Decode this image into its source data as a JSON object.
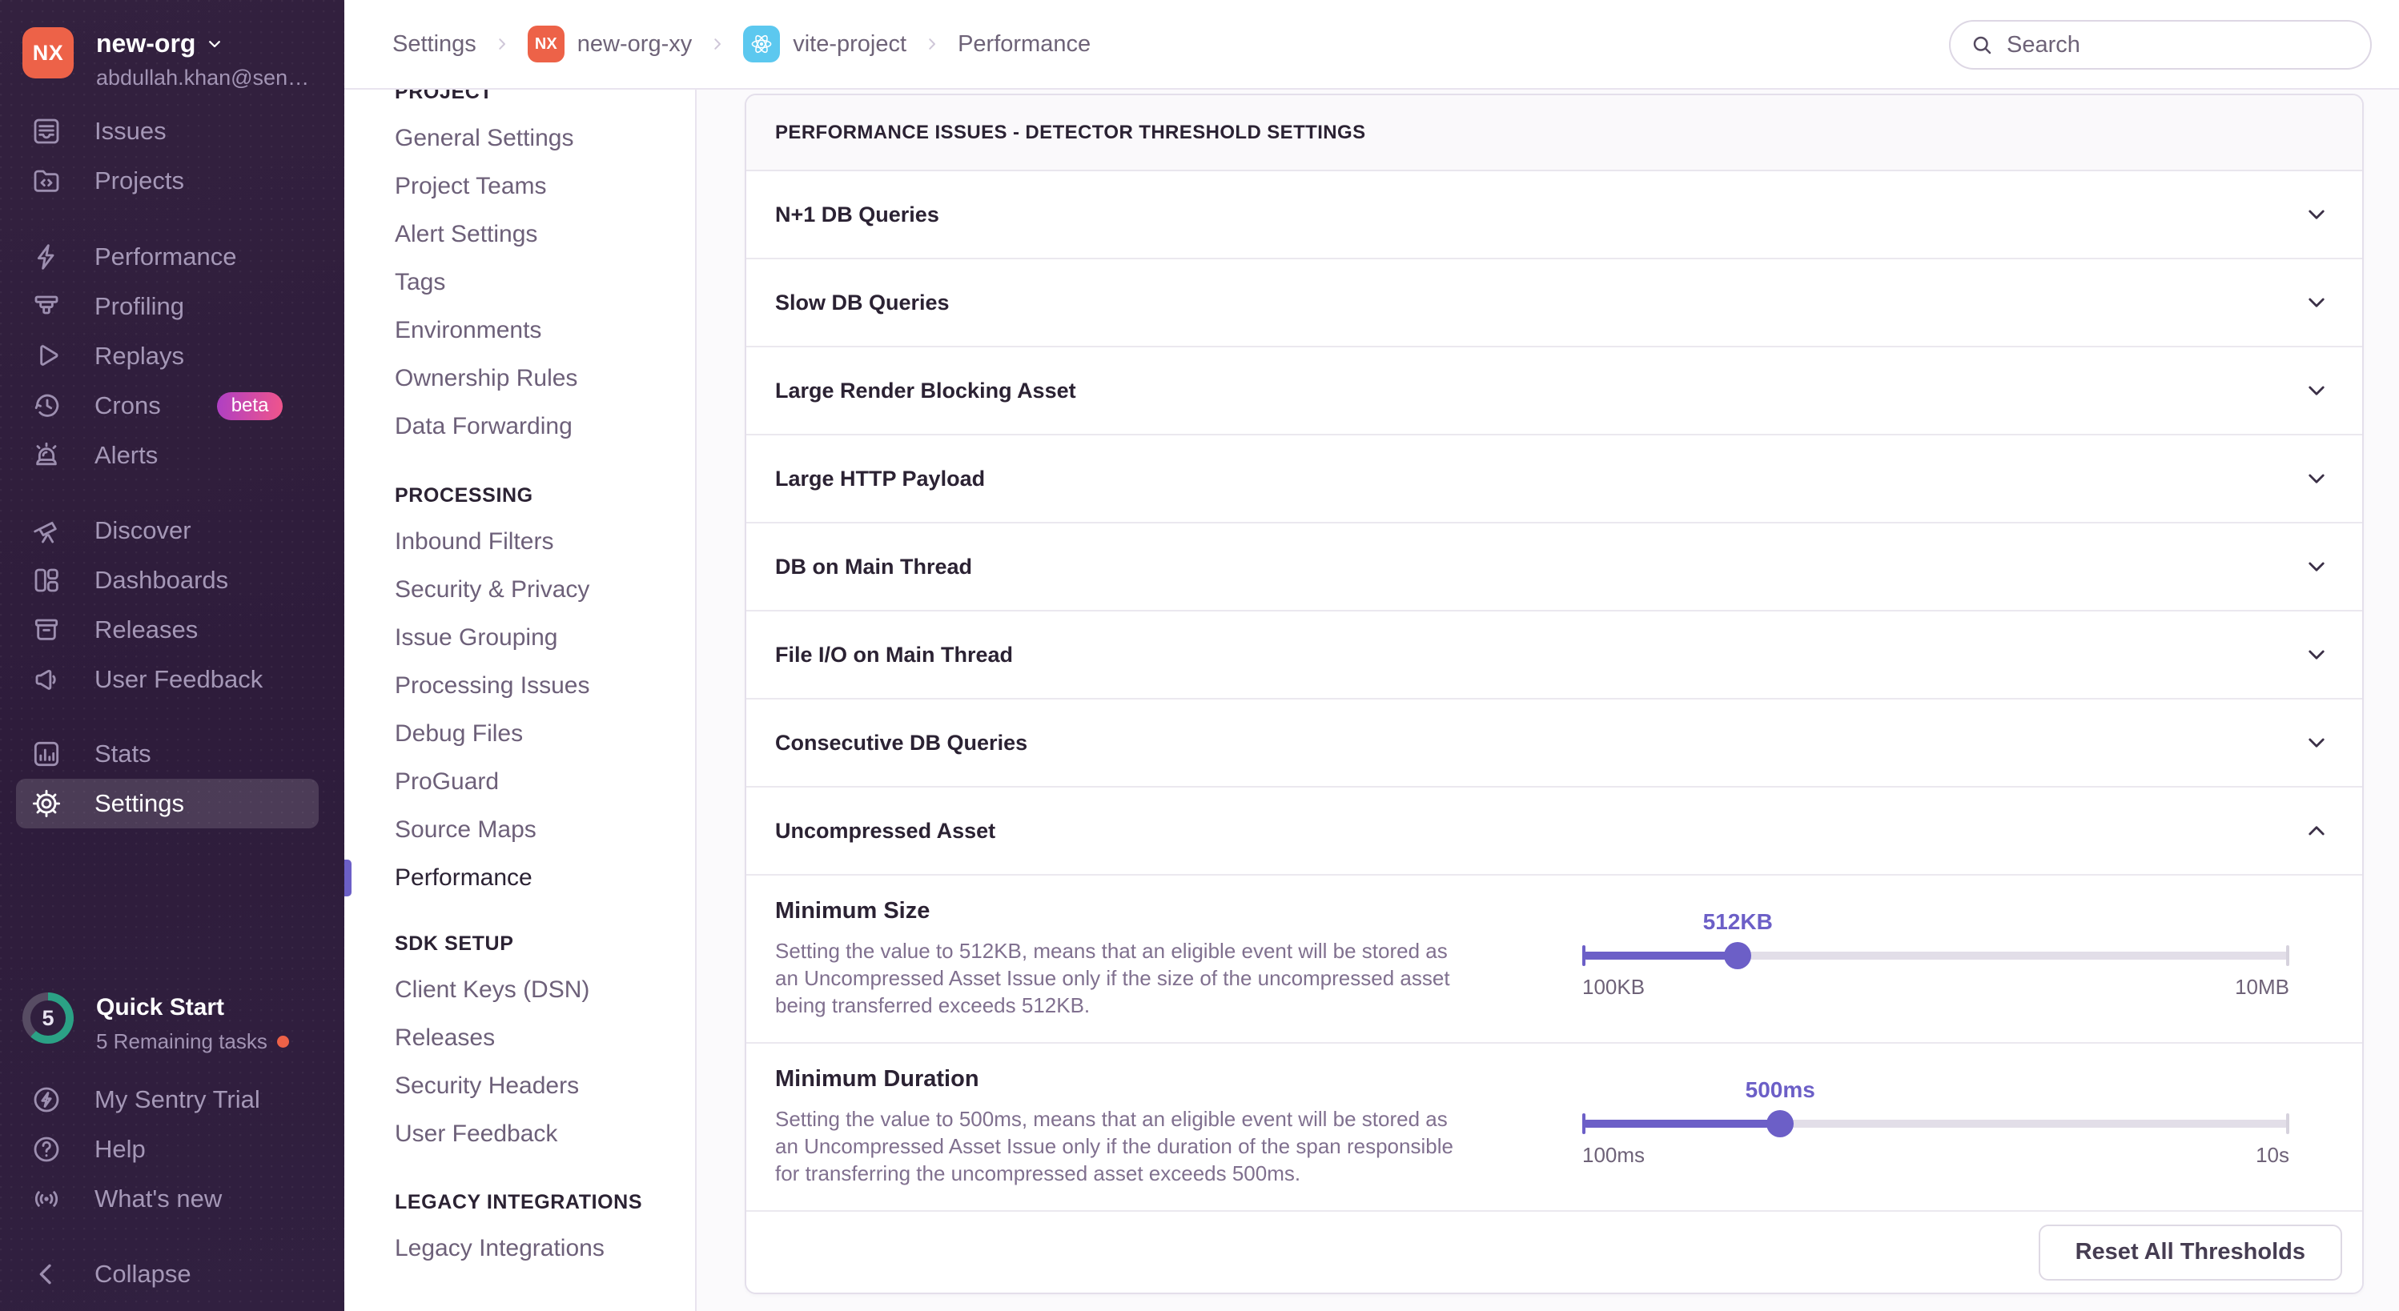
{
  "colors": {
    "accent": "#6c5fc7",
    "sidebar_bg": "#2f1d3c",
    "org_avatar_bg": "#ed6248",
    "react_badge_bg": "#5cc8ef",
    "beta_gradient_start": "#ae3fc4",
    "beta_gradient_end": "#f0558b",
    "quickstart_ring": "#2ba185",
    "notification_dot": "#ed6248"
  },
  "sidebar": {
    "org": {
      "avatar_initials": "NX",
      "name": "new-org",
      "email": "abdullah.khan@sen…"
    },
    "groups": [
      {
        "items": [
          {
            "label": "Issues",
            "icon": "issues"
          },
          {
            "label": "Projects",
            "icon": "projects"
          }
        ]
      },
      {
        "items": [
          {
            "label": "Performance",
            "icon": "performance"
          },
          {
            "label": "Profiling",
            "icon": "profiling"
          },
          {
            "label": "Replays",
            "icon": "replays"
          },
          {
            "label": "Crons",
            "icon": "crons",
            "badge": "beta"
          },
          {
            "label": "Alerts",
            "icon": "alerts"
          }
        ]
      },
      {
        "items": [
          {
            "label": "Discover",
            "icon": "discover"
          },
          {
            "label": "Dashboards",
            "icon": "dashboards"
          },
          {
            "label": "Releases",
            "icon": "releases"
          },
          {
            "label": "User Feedback",
            "icon": "user-feedback"
          }
        ]
      },
      {
        "items": [
          {
            "label": "Stats",
            "icon": "stats"
          },
          {
            "label": "Settings",
            "icon": "settings",
            "active": true
          }
        ]
      },
      {
        "items": [
          {
            "label": "My Sentry Trial",
            "icon": "trial"
          },
          {
            "label": "Help",
            "icon": "help"
          },
          {
            "label": "What's new",
            "icon": "whats-new"
          }
        ]
      }
    ],
    "quick_start": {
      "count": "5",
      "title": "Quick Start",
      "subtitle": "5 Remaining tasks"
    },
    "collapse": {
      "label": "Collapse",
      "icon": "collapse"
    }
  },
  "topbar": {
    "breadcrumbs": [
      {
        "label": "Settings"
      },
      {
        "label": "new-org-xy",
        "badge": "NX",
        "badge_type": "nx"
      },
      {
        "label": "vite-project",
        "badge_type": "react"
      },
      {
        "label": "Performance"
      }
    ],
    "search": {
      "placeholder": "Search"
    }
  },
  "settings_nav": {
    "sections": [
      {
        "title": "PROJECT",
        "items": [
          {
            "label": "General Settings"
          },
          {
            "label": "Project Teams"
          },
          {
            "label": "Alert Settings"
          },
          {
            "label": "Tags"
          },
          {
            "label": "Environments"
          },
          {
            "label": "Ownership Rules"
          },
          {
            "label": "Data Forwarding"
          }
        ]
      },
      {
        "title": "PROCESSING",
        "items": [
          {
            "label": "Inbound Filters"
          },
          {
            "label": "Security & Privacy"
          },
          {
            "label": "Issue Grouping"
          },
          {
            "label": "Processing Issues"
          },
          {
            "label": "Debug Files"
          },
          {
            "label": "ProGuard"
          },
          {
            "label": "Source Maps"
          },
          {
            "label": "Performance",
            "active": true
          }
        ]
      },
      {
        "title": "SDK SETUP",
        "items": [
          {
            "label": "Client Keys (DSN)"
          },
          {
            "label": "Releases"
          },
          {
            "label": "Security Headers"
          },
          {
            "label": "User Feedback"
          }
        ]
      },
      {
        "title": "LEGACY INTEGRATIONS",
        "items": [
          {
            "label": "Legacy Integrations"
          }
        ]
      }
    ]
  },
  "main": {
    "panel_title": "PERFORMANCE ISSUES - DETECTOR THRESHOLD SETTINGS",
    "detectors": [
      {
        "label": "N+1 DB Queries",
        "expanded": false
      },
      {
        "label": "Slow DB Queries",
        "expanded": false
      },
      {
        "label": "Large Render Blocking Asset",
        "expanded": false
      },
      {
        "label": "Large HTTP Payload",
        "expanded": false
      },
      {
        "label": "DB on Main Thread",
        "expanded": false
      },
      {
        "label": "File I/O on Main Thread",
        "expanded": false
      },
      {
        "label": "Consecutive DB Queries",
        "expanded": false
      },
      {
        "label": "Uncompressed Asset",
        "expanded": true
      }
    ],
    "fields": [
      {
        "name": "Minimum Size",
        "description": "Setting the value to 512KB, means that an eligible event will be stored as an Uncompressed Asset Issue only if the size of the uncompressed asset being transferred exceeds 512KB.",
        "slider": {
          "value_label": "512KB",
          "min_label": "100KB",
          "max_label": "10MB",
          "percent": 22
        }
      },
      {
        "name": "Minimum Duration",
        "description": "Setting the value to 500ms, means that an eligible event will be stored as an Uncompressed Asset Issue only if the duration of the span responsible for transferring the uncompressed asset exceeds 500ms.",
        "slider": {
          "value_label": "500ms",
          "min_label": "100ms",
          "max_label": "10s",
          "percent": 28
        }
      }
    ],
    "reset_button_label": "Reset All Thresholds"
  }
}
